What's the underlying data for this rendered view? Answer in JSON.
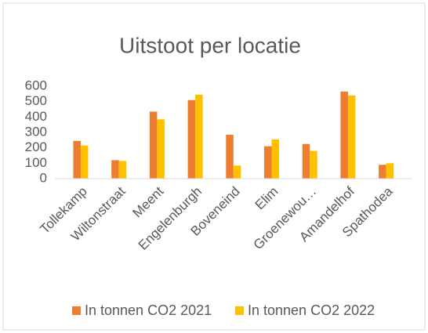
{
  "chart_data": {
    "type": "bar",
    "title": "Uitstoot per locatie",
    "categories": [
      "Tollekamp",
      "Wiltonstraat",
      "Meent",
      "Engelenburgh",
      "Boveneind",
      "Elim",
      "Groenewou…",
      "Amandelhof",
      "Spathodea"
    ],
    "series": [
      {
        "name": "In tonnen CO2 2021",
        "color": "#ED7D31",
        "values": [
          245,
          120,
          435,
          510,
          285,
          210,
          225,
          565,
          90
        ]
      },
      {
        "name": "In tonnen CO2 2022",
        "color": "#FFC000",
        "values": [
          215,
          115,
          385,
          545,
          85,
          255,
          180,
          540,
          100
        ]
      }
    ],
    "ylim": [
      0,
      600
    ],
    "yticks": [
      0,
      100,
      200,
      300,
      400,
      500,
      600
    ],
    "grid": false,
    "legend": "bottom"
  }
}
